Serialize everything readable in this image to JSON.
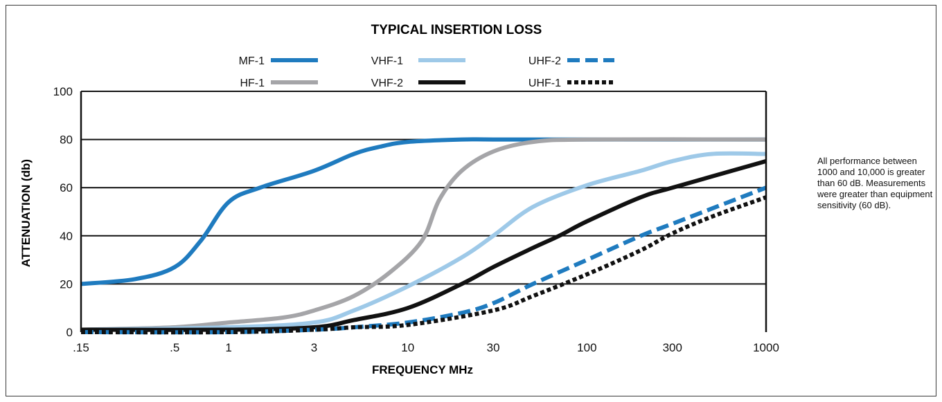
{
  "chart_data": {
    "type": "line",
    "title": "TYPICAL INSERTION LOSS",
    "xlabel": "FREQUENCY  MHz",
    "ylabel": "ATTENUATION (db)",
    "x_scale": "log",
    "xlim": [
      0.15,
      1000
    ],
    "ylim": [
      0,
      100
    ],
    "grid": "horizontal",
    "legend_position": "top",
    "x_ticks": [
      {
        "value": 0.15,
        "label": ".15"
      },
      {
        "value": 0.5,
        "label": ".5"
      },
      {
        "value": 1,
        "label": "1"
      },
      {
        "value": 3,
        "label": "3"
      },
      {
        "value": 10,
        "label": "10"
      },
      {
        "value": 30,
        "label": "30"
      },
      {
        "value": 100,
        "label": "100"
      },
      {
        "value": 300,
        "label": "300"
      },
      {
        "value": 1000,
        "label": "1000"
      }
    ],
    "y_ticks": [
      {
        "value": 0,
        "label": "0"
      },
      {
        "value": 20,
        "label": "20"
      },
      {
        "value": 40,
        "label": "40"
      },
      {
        "value": 60,
        "label": "60"
      },
      {
        "value": 80,
        "label": "80"
      },
      {
        "value": 100,
        "label": "100"
      }
    ],
    "series": [
      {
        "name": "MF-1",
        "color": "#1f7bbf",
        "style": "solid",
        "x": [
          0.15,
          0.3,
          0.5,
          0.7,
          1,
          1.5,
          3,
          5,
          7,
          10,
          20,
          30,
          100,
          1000
        ],
        "y": [
          20,
          22,
          27,
          38,
          54,
          60,
          67,
          74,
          77,
          79,
          80,
          80,
          80,
          80
        ]
      },
      {
        "name": "HF-1",
        "color": "#a5a5a8",
        "style": "solid",
        "x": [
          0.15,
          0.5,
          1,
          2,
          3,
          5,
          8,
          12,
          15,
          20,
          30,
          50,
          100,
          1000
        ],
        "y": [
          1,
          2,
          4,
          6,
          9,
          15,
          25,
          38,
          55,
          67,
          75,
          79,
          80,
          80
        ]
      },
      {
        "name": "VHF-1",
        "color": "#9ec9e8",
        "style": "solid",
        "x": [
          0.15,
          1,
          3,
          5,
          10,
          20,
          30,
          50,
          100,
          200,
          300,
          500,
          1000
        ],
        "y": [
          1,
          2,
          4,
          9,
          19,
          31,
          40,
          52,
          61,
          67,
          71,
          74,
          74
        ]
      },
      {
        "name": "VHF-2",
        "color": "#111111",
        "style": "solid",
        "x": [
          0.15,
          1,
          3,
          5,
          10,
          20,
          30,
          50,
          70,
          100,
          200,
          300,
          1000
        ],
        "y": [
          1,
          1,
          2,
          5,
          10,
          20,
          27,
          35,
          40,
          46,
          56,
          60,
          71
        ]
      },
      {
        "name": "UHF-2",
        "color": "#1f7bbf",
        "style": "dashed",
        "x": [
          0.15,
          1,
          3,
          5,
          10,
          20,
          30,
          50,
          100,
          200,
          300,
          1000
        ],
        "y": [
          0,
          0,
          1,
          2,
          4,
          8,
          12,
          20,
          30,
          40,
          45,
          60
        ]
      },
      {
        "name": "UHF-1",
        "color": "#111111",
        "style": "dotted",
        "x": [
          0.15,
          1,
          3,
          5,
          10,
          30,
          50,
          100,
          200,
          300,
          500,
          1000
        ],
        "y": [
          0,
          0,
          1,
          2,
          3,
          9,
          15,
          24,
          34,
          41,
          48,
          56
        ]
      }
    ]
  },
  "note": "All performance between 1000 and 10,000 is greater than 60 dB. Measurements were greater than equipment sensitivity (60 dB)."
}
